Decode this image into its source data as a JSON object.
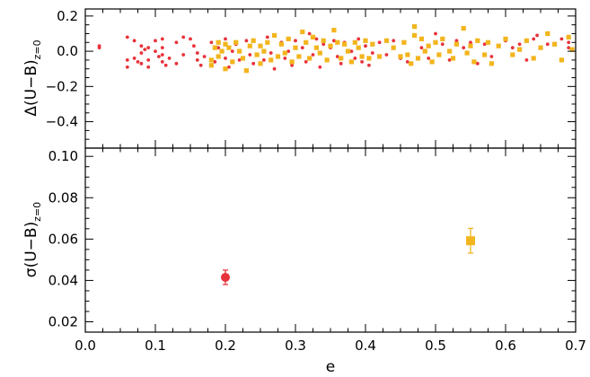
{
  "chart_data": [
    {
      "type": "scatter",
      "panel": "top",
      "ylabel": "Δ(U−B)",
      "ylabel_subscript": "z=0",
      "xlim": [
        0.0,
        0.7
      ],
      "ylim": [
        -0.55,
        0.24
      ],
      "ytick_values": [
        0.2,
        0.0,
        -0.2,
        -0.4
      ],
      "ytick_labels": [
        "0.2",
        "0.0",
        "−0.2",
        "−0.4"
      ],
      "grid": false,
      "series": [
        {
          "color": "#e8323a",
          "marker": "circle",
          "points": [
            [
              0.02,
              0.03
            ],
            [
              0.02,
              0.02
            ],
            [
              0.06,
              -0.05
            ],
            [
              0.06,
              0.08
            ],
            [
              0.06,
              -0.09
            ],
            [
              0.07,
              -0.04
            ],
            [
              0.07,
              0.06
            ],
            [
              0.075,
              -0.06
            ],
            [
              0.08,
              0.03
            ],
            [
              0.08,
              -0.01
            ],
            [
              0.08,
              -0.07
            ],
            [
              0.085,
              0.01
            ],
            [
              0.09,
              0.02
            ],
            [
              0.09,
              -0.05
            ],
            [
              0.09,
              -0.09
            ],
            [
              0.1,
              0.06
            ],
            [
              0.1,
              0.0
            ],
            [
              0.105,
              -0.03
            ],
            [
              0.11,
              0.07
            ],
            [
              0.11,
              -0.06
            ],
            [
              0.11,
              0.02
            ],
            [
              0.11,
              -0.02
            ],
            [
              0.115,
              -0.08
            ],
            [
              0.12,
              -0.04
            ],
            [
              0.13,
              0.05
            ],
            [
              0.13,
              -0.07
            ],
            [
              0.14,
              0.08
            ],
            [
              0.14,
              -0.02
            ],
            [
              0.15,
              0.07
            ],
            [
              0.155,
              0.03
            ],
            [
              0.16,
              -0.05
            ],
            [
              0.16,
              -0.01
            ],
            [
              0.165,
              -0.08
            ],
            [
              0.17,
              -0.03
            ],
            [
              0.18,
              0.05
            ],
            [
              0.185,
              -0.06
            ],
            [
              0.19,
              0.02
            ],
            [
              0.2,
              -0.04
            ],
            [
              0.2,
              0.07
            ],
            [
              0.205,
              -0.09
            ],
            [
              0.21,
              0.0
            ],
            [
              0.215,
              0.04
            ],
            [
              0.22,
              -0.05
            ],
            [
              0.23,
              0.06
            ],
            [
              0.235,
              -0.02
            ],
            [
              0.24,
              -0.07
            ],
            [
              0.25,
              0.03
            ],
            [
              0.255,
              -0.05
            ],
            [
              0.26,
              0.08
            ],
            [
              0.265,
              -0.01
            ],
            [
              0.27,
              -0.1
            ],
            [
              0.28,
              0.05
            ],
            [
              0.285,
              -0.04
            ],
            [
              0.29,
              0.0
            ],
            [
              0.295,
              -0.08
            ],
            [
              0.3,
              0.06
            ],
            [
              0.305,
              -0.03
            ],
            [
              0.31,
              0.02
            ],
            [
              0.315,
              -0.06
            ],
            [
              0.32,
              0.1
            ],
            [
              0.325,
              -0.02
            ],
            [
              0.33,
              0.07
            ],
            [
              0.335,
              -0.09
            ],
            [
              0.34,
              0.04
            ],
            [
              0.345,
              -0.05
            ],
            [
              0.35,
              0.02
            ],
            [
              0.355,
              0.06
            ],
            [
              0.36,
              -0.03
            ],
            [
              0.365,
              -0.07
            ],
            [
              0.37,
              0.05
            ],
            [
              0.38,
              0.0
            ],
            [
              0.385,
              -0.04
            ],
            [
              0.39,
              0.07
            ],
            [
              0.395,
              -0.06
            ],
            [
              0.4,
              0.03
            ],
            [
              0.405,
              -0.08
            ],
            [
              0.41,
              -0.01
            ],
            [
              0.42,
              0.05
            ],
            [
              0.43,
              -0.02
            ],
            [
              0.44,
              0.06
            ],
            [
              0.45,
              -0.04
            ],
            [
              0.46,
              -0.06
            ],
            [
              0.48,
              0.02
            ],
            [
              0.49,
              -0.04
            ],
            [
              0.5,
              0.1
            ],
            [
              0.505,
              -0.02
            ],
            [
              0.51,
              0.04
            ],
            [
              0.52,
              -0.05
            ],
            [
              0.53,
              0.06
            ],
            [
              0.54,
              0.02
            ],
            [
              0.55,
              0.05
            ],
            [
              0.56,
              -0.07
            ],
            [
              0.57,
              0.04
            ],
            [
              0.58,
              -0.03
            ],
            [
              0.6,
              0.06
            ],
            [
              0.61,
              0.02
            ],
            [
              0.62,
              0.04
            ],
            [
              0.63,
              -0.05
            ],
            [
              0.64,
              0.07
            ],
            [
              0.645,
              0.09
            ],
            [
              0.66,
              0.04
            ],
            [
              0.68,
              0.07
            ],
            [
              0.69,
              0.02
            ],
            [
              0.69,
              0.05
            ]
          ]
        },
        {
          "color": "#f2b51e",
          "marker": "square",
          "points": [
            [
              0.18,
              -0.05
            ],
            [
              0.18,
              -0.08
            ],
            [
              0.185,
              0.02
            ],
            [
              0.19,
              0.05
            ],
            [
              0.19,
              -0.03
            ],
            [
              0.195,
              0.0
            ],
            [
              0.2,
              0.04
            ],
            [
              0.2,
              -0.1
            ],
            [
              0.205,
              0.02
            ],
            [
              0.21,
              -0.06
            ],
            [
              0.215,
              0.05
            ],
            [
              0.22,
              0.0
            ],
            [
              0.225,
              -0.04
            ],
            [
              0.23,
              -0.11
            ],
            [
              0.235,
              0.03
            ],
            [
              0.24,
              0.06
            ],
            [
              0.245,
              -0.02
            ],
            [
              0.25,
              0.03
            ],
            [
              0.25,
              -0.07
            ],
            [
              0.255,
              0.0
            ],
            [
              0.26,
              0.05
            ],
            [
              0.265,
              -0.05
            ],
            [
              0.27,
              0.09
            ],
            [
              0.275,
              -0.03
            ],
            [
              0.28,
              0.04
            ],
            [
              0.285,
              -0.01
            ],
            [
              0.29,
              0.07
            ],
            [
              0.295,
              -0.06
            ],
            [
              0.3,
              0.02
            ],
            [
              0.305,
              -0.03
            ],
            [
              0.31,
              0.11
            ],
            [
              0.315,
              0.05
            ],
            [
              0.32,
              -0.04
            ],
            [
              0.325,
              0.08
            ],
            [
              0.33,
              0.02
            ],
            [
              0.335,
              -0.01
            ],
            [
              0.34,
              0.06
            ],
            [
              0.345,
              -0.05
            ],
            [
              0.35,
              0.03
            ],
            [
              0.355,
              0.12
            ],
            [
              0.36,
              0.05
            ],
            [
              0.365,
              -0.04
            ],
            [
              0.37,
              0.04
            ],
            [
              0.375,
              0.0
            ],
            [
              0.38,
              -0.06
            ],
            [
              0.385,
              0.05
            ],
            [
              0.39,
              0.02
            ],
            [
              0.395,
              -0.03
            ],
            [
              0.4,
              0.06
            ],
            [
              0.405,
              -0.04
            ],
            [
              0.41,
              0.04
            ],
            [
              0.42,
              -0.03
            ],
            [
              0.43,
              0.06
            ],
            [
              0.44,
              0.02
            ],
            [
              0.45,
              -0.03
            ],
            [
              0.455,
              0.05
            ],
            [
              0.46,
              -0.02
            ],
            [
              0.465,
              -0.07
            ],
            [
              0.47,
              0.09
            ],
            [
              0.47,
              0.14
            ],
            [
              0.475,
              -0.04
            ],
            [
              0.48,
              0.07
            ],
            [
              0.485,
              0.0
            ],
            [
              0.49,
              0.03
            ],
            [
              0.495,
              -0.06
            ],
            [
              0.5,
              0.05
            ],
            [
              0.505,
              -0.02
            ],
            [
              0.51,
              0.07
            ],
            [
              0.52,
              0.0
            ],
            [
              0.525,
              -0.04
            ],
            [
              0.53,
              0.04
            ],
            [
              0.54,
              0.13
            ],
            [
              0.545,
              -0.01
            ],
            [
              0.55,
              0.03
            ],
            [
              0.555,
              -0.06
            ],
            [
              0.56,
              0.06
            ],
            [
              0.57,
              -0.02
            ],
            [
              0.575,
              0.05
            ],
            [
              0.58,
              -0.07
            ],
            [
              0.59,
              0.03
            ],
            [
              0.6,
              0.07
            ],
            [
              0.61,
              -0.02
            ],
            [
              0.62,
              0.01
            ],
            [
              0.63,
              0.06
            ],
            [
              0.64,
              -0.04
            ],
            [
              0.65,
              0.02
            ],
            [
              0.66,
              0.1
            ],
            [
              0.67,
              0.04
            ],
            [
              0.68,
              -0.05
            ],
            [
              0.69,
              0.08
            ],
            [
              0.695,
              0.01
            ]
          ]
        }
      ]
    },
    {
      "type": "scatter",
      "panel": "bottom",
      "xlabel": "e",
      "ylabel": "σ(U−B)",
      "ylabel_subscript": "z=0",
      "xlim": [
        0.0,
        0.7
      ],
      "ylim": [
        0.015,
        0.104
      ],
      "xtick_values": [
        0.0,
        0.1,
        0.2,
        0.3,
        0.4,
        0.5,
        0.6,
        0.7
      ],
      "xtick_labels": [
        "0.0",
        "0.1",
        "0.2",
        "0.3",
        "0.4",
        "0.5",
        "0.6",
        "0.7"
      ],
      "ytick_values": [
        0.02,
        0.04,
        0.06,
        0.08,
        0.1
      ],
      "ytick_labels": [
        "0.02",
        "0.04",
        "0.06",
        "0.08",
        "0.10"
      ],
      "grid": false,
      "series": [
        {
          "color": "#e8323a",
          "marker": "circle",
          "points": [
            [
              0.2,
              0.0415
            ]
          ],
          "yerr": [
            0.0035
          ]
        },
        {
          "color": "#f2b51e",
          "marker": "square",
          "points": [
            [
              0.55,
              0.0592
            ]
          ],
          "yerr": [
            0.006
          ]
        }
      ]
    }
  ]
}
